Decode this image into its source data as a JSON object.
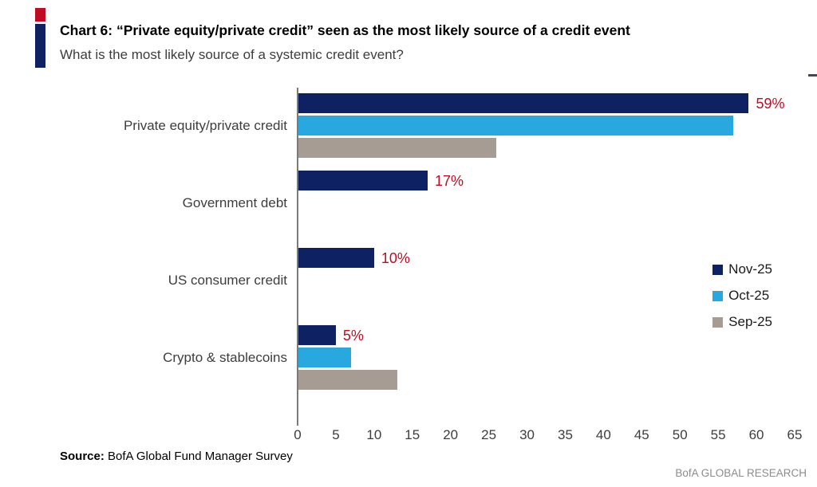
{
  "header": {
    "title": "Chart 6: “Private equity/private credit” seen as the most likely source of a credit event",
    "subtitle": "What is the most likely source of a systemic credit event?"
  },
  "colors": {
    "accent_red": "#c00c22",
    "accent_blue": "#0e2162"
  },
  "chart_data": {
    "type": "bar",
    "orientation": "horizontal",
    "title": "Chart 6: “Private equity/private credit” seen as the most likely source of a credit event",
    "subtitle": "What is the most likely source of a systemic credit event?",
    "categories": [
      "Private equity/private credit",
      "Government debt",
      "US consumer credit",
      "Crypto & stablecoins"
    ],
    "series": [
      {
        "name": "Nov-25",
        "color": "#0e2162",
        "values": [
          59,
          17,
          10,
          5
        ]
      },
      {
        "name": "Oct-25",
        "color": "#29a8e0",
        "values": [
          57,
          0,
          0,
          7
        ]
      },
      {
        "name": "Sep-25",
        "color": "#a69c93",
        "values": [
          26,
          0,
          0,
          13
        ]
      }
    ],
    "data_labels": [
      "59%",
      "17%",
      "10%",
      "5%"
    ],
    "data_label_color": "#c00c22",
    "xlim": [
      0,
      65
    ],
    "xticks": [
      0,
      5,
      10,
      15,
      20,
      25,
      30,
      35,
      40,
      45,
      50,
      55,
      60,
      65
    ],
    "grid": false,
    "legend_position": "right"
  },
  "footer": {
    "source_label": "Source:",
    "source_text": " BofA Global Fund Manager Survey",
    "brand": "BofA GLOBAL RESEARCH"
  }
}
